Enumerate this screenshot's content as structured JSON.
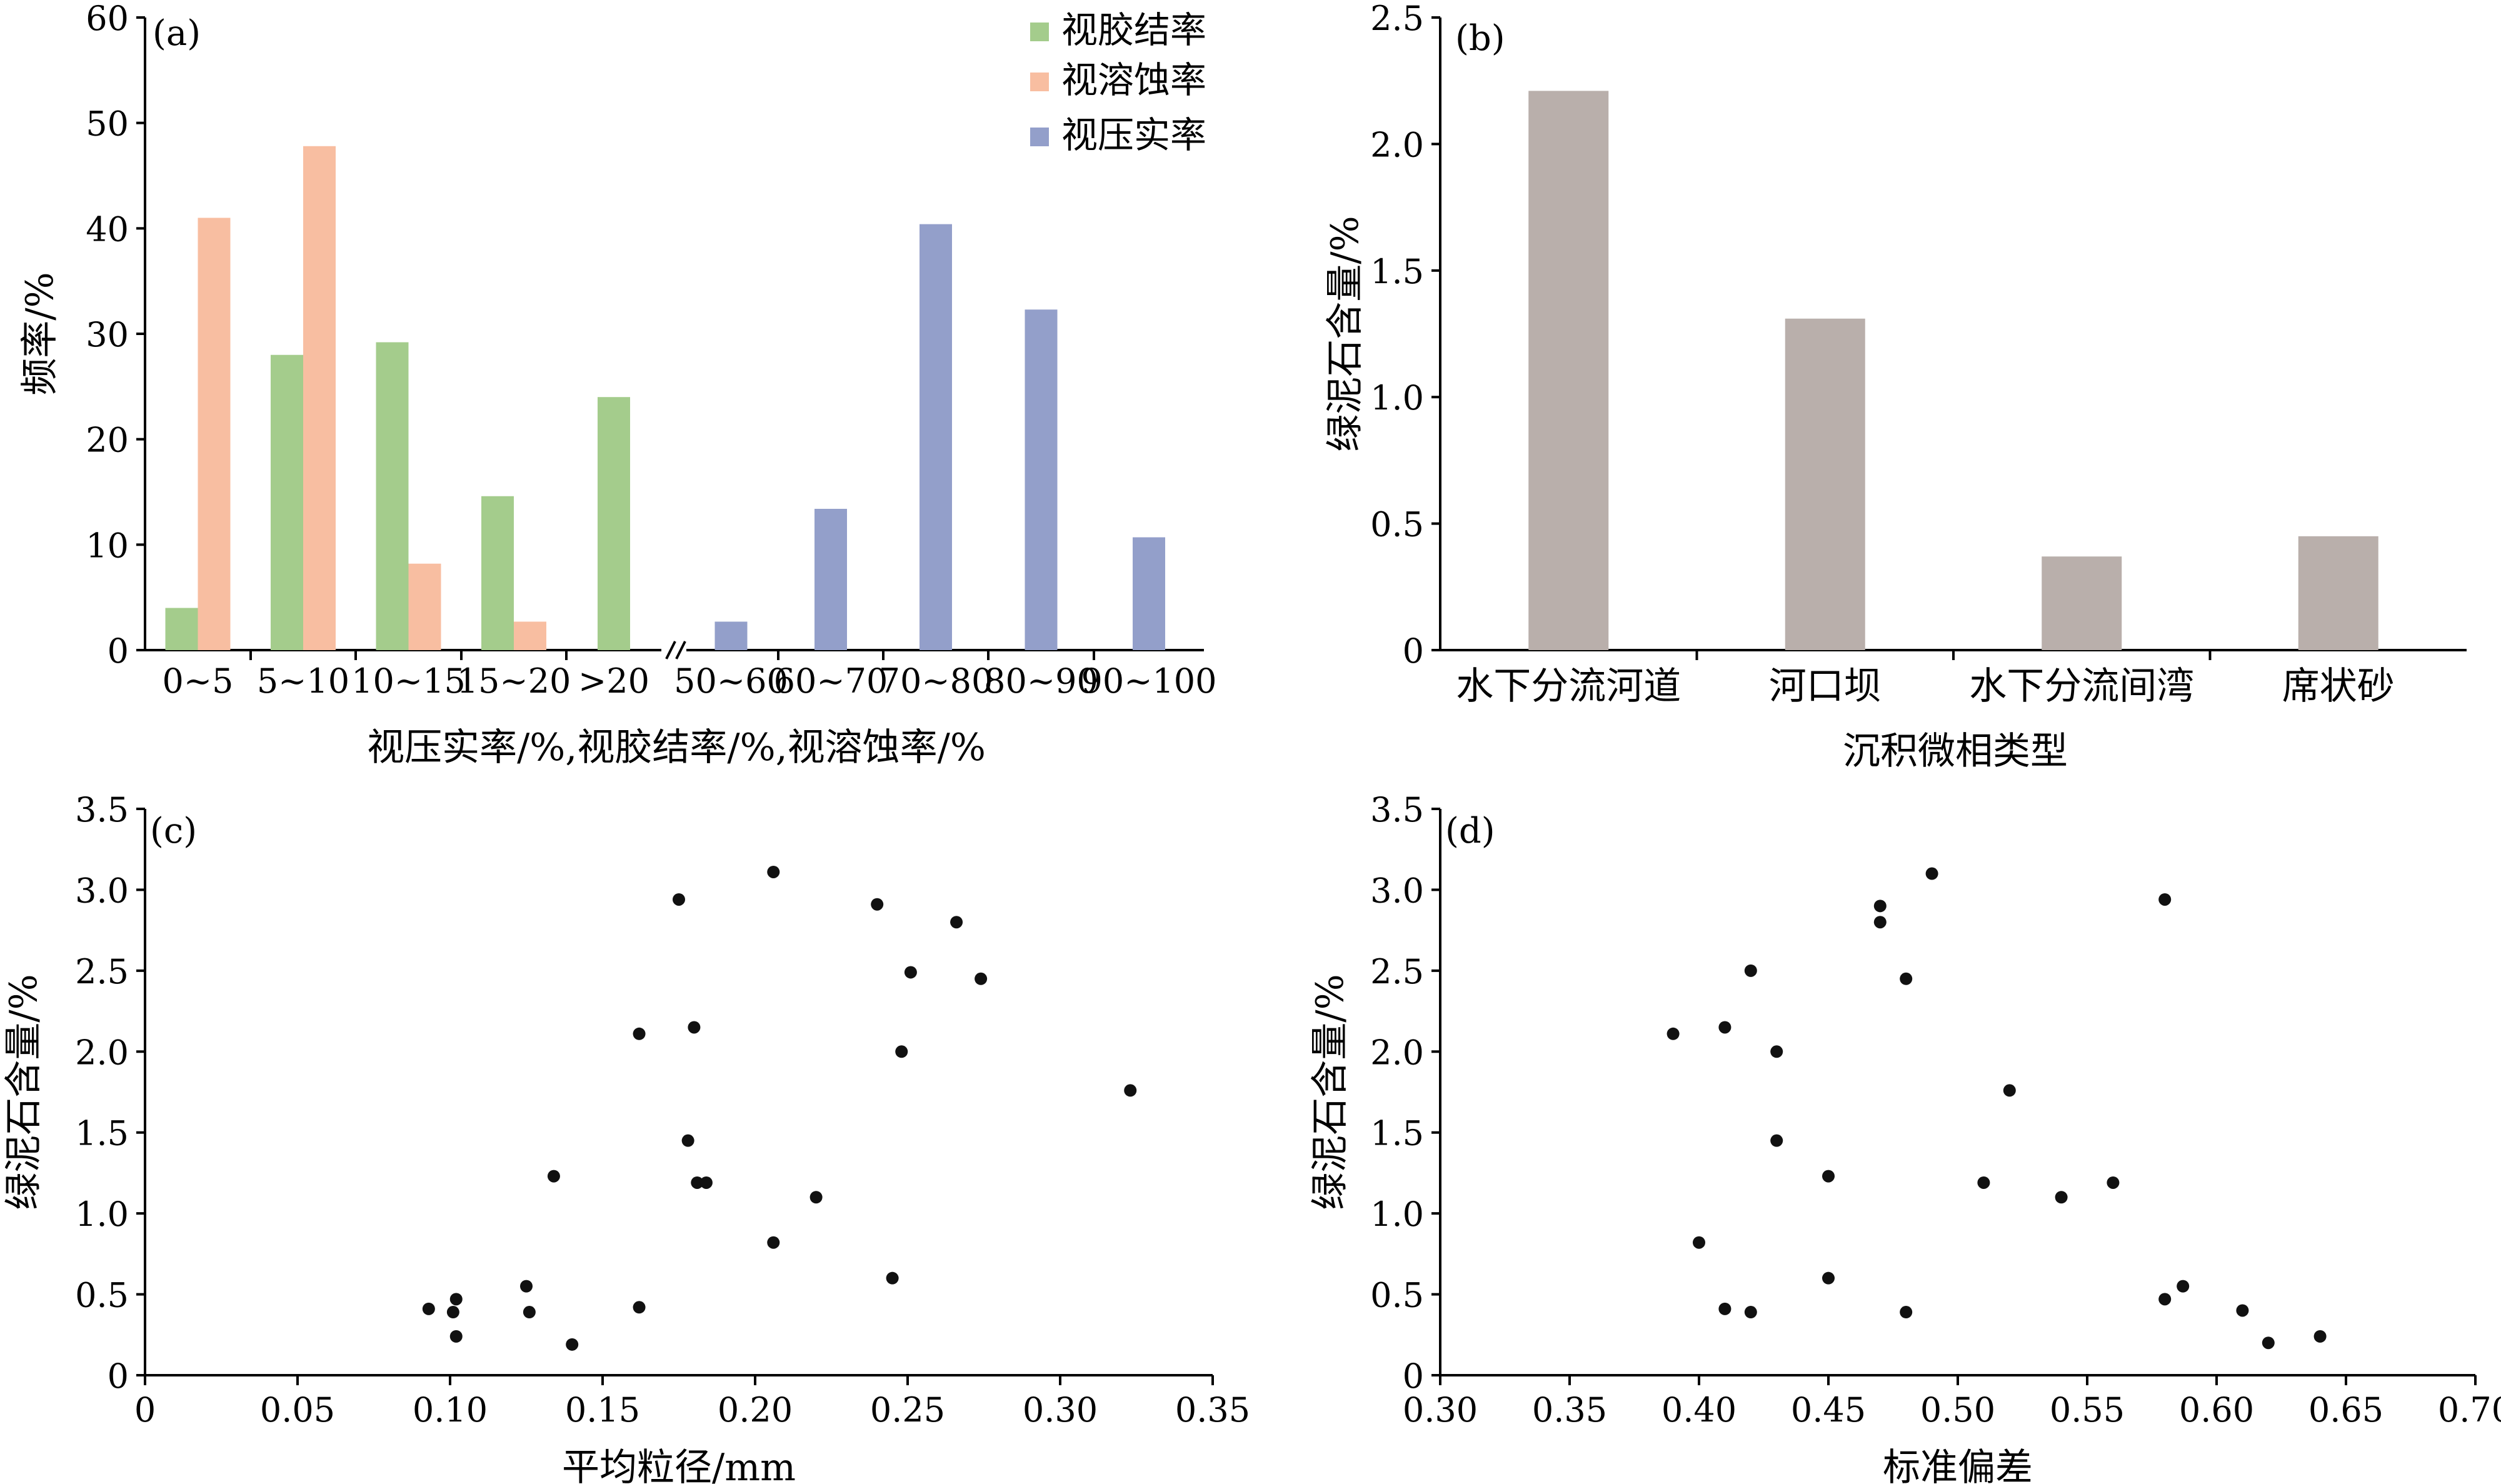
{
  "chart_data": [
    {
      "id": "a",
      "panel_label": "(a)",
      "type": "bar",
      "xlabel": "视压实率/%,视胶结率/%,视溶蚀率/%",
      "ylabel": "频率/%",
      "ylim": [
        0,
        60
      ],
      "yticks": [
        "0",
        "10",
        "20",
        "30",
        "40",
        "50",
        "60"
      ],
      "categories": [
        "0~5",
        "5~10",
        "10~15",
        "15~20",
        ">20",
        "50~60",
        "60~70",
        "70~80",
        "80~90",
        "90~100"
      ],
      "axis_break_between": [
        ">20",
        "50~60"
      ],
      "legend_position": "top-right",
      "series": [
        {
          "name": "视胶结率",
          "color": "#a4cc8c",
          "values": [
            4,
            28,
            29.2,
            14.6,
            24,
            null,
            null,
            null,
            null,
            null
          ]
        },
        {
          "name": "视溶蚀率",
          "color": "#f8bea1",
          "values": [
            41,
            47.8,
            8.2,
            2.7,
            null,
            null,
            null,
            null,
            null,
            null
          ]
        },
        {
          "name": "视压实率",
          "color": "#939fca",
          "values": [
            null,
            null,
            null,
            null,
            null,
            2.7,
            13.4,
            40.4,
            32.3,
            10.7
          ]
        }
      ]
    },
    {
      "id": "b",
      "panel_label": "(b)",
      "type": "bar",
      "xlabel": "沉积微相类型",
      "ylabel": "绿泥石含量/%",
      "ylim": [
        0,
        2.5
      ],
      "yticks": [
        "0",
        "0.5",
        "1.0",
        "1.5",
        "2.0",
        "2.5"
      ],
      "categories": [
        "水下分流河道",
        "河口坝",
        "水下分流间湾",
        "席状砂"
      ],
      "color": "#b9afab",
      "values": [
        2.21,
        1.31,
        0.37,
        0.45
      ]
    },
    {
      "id": "c",
      "panel_label": "(c)",
      "type": "scatter",
      "xlabel": "平均粒径/mm",
      "ylabel": "绿泥石含量/%",
      "xlim": [
        0,
        0.35
      ],
      "ylim": [
        0,
        3.5
      ],
      "xticks": [
        "0",
        "0.05",
        "0.10",
        "0.15",
        "0.20",
        "0.25",
        "0.30",
        "0.35"
      ],
      "yticks": [
        "0",
        "0.5",
        "1.0",
        "1.5",
        "2.0",
        "2.5",
        "3.0",
        "3.5"
      ],
      "points": [
        [
          0.093,
          0.41
        ],
        [
          0.102,
          0.47
        ],
        [
          0.101,
          0.39
        ],
        [
          0.102,
          0.24
        ],
        [
          0.125,
          0.55
        ],
        [
          0.126,
          0.39
        ],
        [
          0.134,
          1.23
        ],
        [
          0.14,
          0.19
        ],
        [
          0.162,
          0.42
        ],
        [
          0.162,
          2.11
        ],
        [
          0.175,
          2.94
        ],
        [
          0.178,
          1.45
        ],
        [
          0.18,
          2.15
        ],
        [
          0.181,
          1.19
        ],
        [
          0.184,
          1.19
        ],
        [
          0.206,
          3.11
        ],
        [
          0.206,
          0.82
        ],
        [
          0.22,
          1.1
        ],
        [
          0.24,
          2.91
        ],
        [
          0.245,
          0.6
        ],
        [
          0.248,
          2.0
        ],
        [
          0.251,
          2.49
        ],
        [
          0.266,
          2.8
        ],
        [
          0.274,
          2.45
        ],
        [
          0.323,
          1.76
        ]
      ]
    },
    {
      "id": "d",
      "panel_label": "(d)",
      "type": "scatter",
      "xlabel": "标准偏差",
      "ylabel": "绿泥石含量/%",
      "xlim": [
        0.3,
        0.7
      ],
      "ylim": [
        0,
        3.5
      ],
      "xticks": [
        "0.30",
        "0.35",
        "0.40",
        "0.45",
        "0.50",
        "0.55",
        "0.60",
        "0.65",
        "0.70"
      ],
      "yticks": [
        "0",
        "0.5",
        "1.0",
        "1.5",
        "2.0",
        "2.5",
        "3.0",
        "3.5"
      ],
      "points": [
        [
          0.39,
          2.11
        ],
        [
          0.4,
          0.82
        ],
        [
          0.41,
          0.41
        ],
        [
          0.41,
          2.15
        ],
        [
          0.42,
          0.39
        ],
        [
          0.42,
          2.5
        ],
        [
          0.43,
          2.0
        ],
        [
          0.43,
          1.45
        ],
        [
          0.45,
          1.23
        ],
        [
          0.45,
          0.6
        ],
        [
          0.47,
          2.9
        ],
        [
          0.47,
          2.8
        ],
        [
          0.48,
          2.45
        ],
        [
          0.48,
          0.39
        ],
        [
          0.49,
          3.1
        ],
        [
          0.51,
          1.19
        ],
        [
          0.52,
          1.76
        ],
        [
          0.54,
          1.1
        ],
        [
          0.56,
          1.19
        ],
        [
          0.58,
          2.94
        ],
        [
          0.58,
          0.47
        ],
        [
          0.587,
          0.55
        ],
        [
          0.61,
          0.4
        ],
        [
          0.62,
          0.2
        ],
        [
          0.64,
          0.24
        ]
      ]
    }
  ]
}
